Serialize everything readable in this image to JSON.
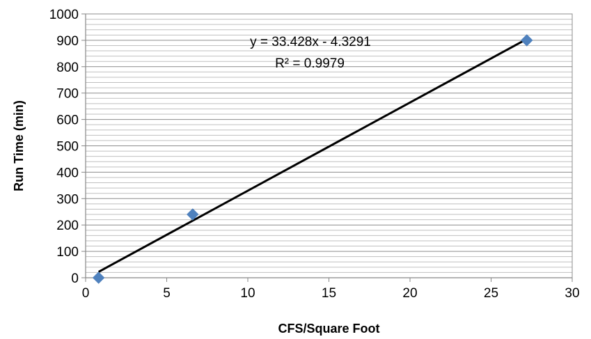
{
  "chart_data": {
    "type": "scatter",
    "title": "",
    "xlabel": "CFS/Square Foot",
    "ylabel": "Run Time (min)",
    "xlim": [
      0,
      30
    ],
    "ylim": [
      0,
      1000
    ],
    "x_ticks": [
      0,
      5,
      10,
      15,
      20,
      25,
      30
    ],
    "y_ticks": [
      0,
      100,
      200,
      300,
      400,
      500,
      600,
      700,
      800,
      900,
      1000
    ],
    "x_tick_labels": [
      "0",
      "5",
      "10",
      "15",
      "20",
      "25",
      "30"
    ],
    "y_tick_labels": [
      "0",
      "100",
      "200",
      "300",
      "400",
      "500",
      "600",
      "700",
      "800",
      "900",
      "1000"
    ],
    "grid": true,
    "legend": false,
    "marker_color": "#4F81BD",
    "trendline_color": "#000000",
    "series": [
      {
        "x": [
          0.8,
          6.6,
          27.2
        ],
        "y": [
          0,
          240,
          900
        ]
      }
    ],
    "trendline": {
      "type": "linear",
      "slope": 33.428,
      "intercept": -4.3291,
      "x_range": [
        0.8,
        27.2
      ]
    },
    "annotations": {
      "equation": "y = 33.428x - 4.3291",
      "r_squared": "R² = 0.9979"
    }
  }
}
